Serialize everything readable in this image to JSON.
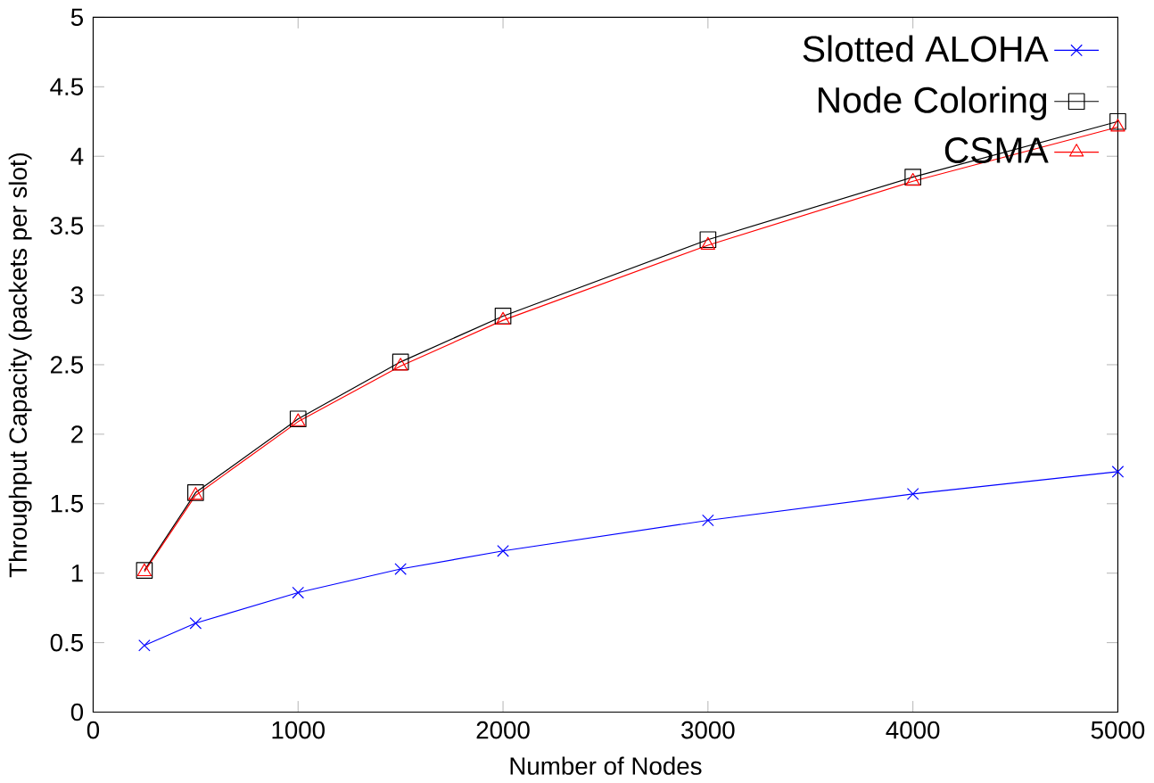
{
  "chart_data": {
    "type": "line",
    "xlabel": "Number of Nodes",
    "ylabel": "Throughput Capacity (packets per slot)",
    "x": [
      250,
      500,
      1000,
      1500,
      2000,
      3000,
      4000,
      5000
    ],
    "series": [
      {
        "name": "Slotted ALOHA",
        "color": "#0000ff",
        "marker": "cross",
        "values": [
          0.48,
          0.64,
          0.86,
          1.03,
          1.16,
          1.38,
          1.57,
          1.73
        ]
      },
      {
        "name": "Node Coloring",
        "color": "#000000",
        "marker": "square",
        "values": [
          1.02,
          1.58,
          2.11,
          2.52,
          2.85,
          3.4,
          3.85,
          4.25
        ]
      },
      {
        "name": "CSMA",
        "color": "#ff0000",
        "marker": "triangle",
        "values": [
          1.01,
          1.56,
          2.09,
          2.49,
          2.82,
          3.36,
          3.82,
          4.21
        ]
      }
    ],
    "xlim": [
      0,
      5000
    ],
    "ylim": [
      0,
      5
    ],
    "xticks": [
      0,
      1000,
      2000,
      3000,
      4000,
      5000
    ],
    "yticks": [
      0,
      0.5,
      1,
      1.5,
      2,
      2.5,
      3,
      3.5,
      4,
      4.5,
      5
    ],
    "legend": "top right",
    "grid": false,
    "line_style": "solid"
  }
}
